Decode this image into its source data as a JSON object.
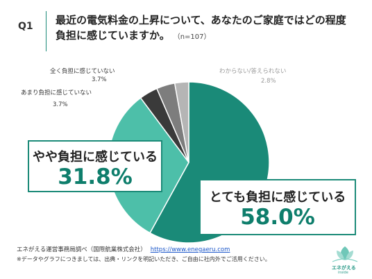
{
  "header": {
    "q_label": "Q1",
    "question_line1": "最近の電気料金の上昇について、あなたのご家庭ではどの程度",
    "question_line2": "負担に感じていますか。",
    "n_label": "（n=107）"
  },
  "chart_data": {
    "type": "pie",
    "title": "",
    "labels": [
      "とても負担に感じている",
      "やや負担に感じている",
      "あまり負担に感じていない",
      "全く負担に感じていない",
      "わからない/答えられない"
    ],
    "values": [
      58.0,
      31.8,
      3.7,
      3.7,
      2.8
    ],
    "value_labels": [
      "58.0%",
      "31.8%",
      "3.7%",
      "3.7%",
      "2.8%"
    ],
    "colors": [
      "#1a8a78",
      "#4dbfa9",
      "#3a3a3a",
      "#7d7d7d",
      "#b5b5b5"
    ],
    "start": "12 o'clock, clockwise"
  },
  "footer": {
    "source": "エネがえる運営事務局調べ（国際航業株式会社）",
    "url": "https://www.enegaeru.com",
    "note": "※データやグラフにつきましては、出典・リンクを明記いただき、ご自由に社内外でご活用ください。"
  },
  "logo": {
    "text": "エネがえる",
    "sub": "inside",
    "icon": "leaf-logo-icon"
  }
}
